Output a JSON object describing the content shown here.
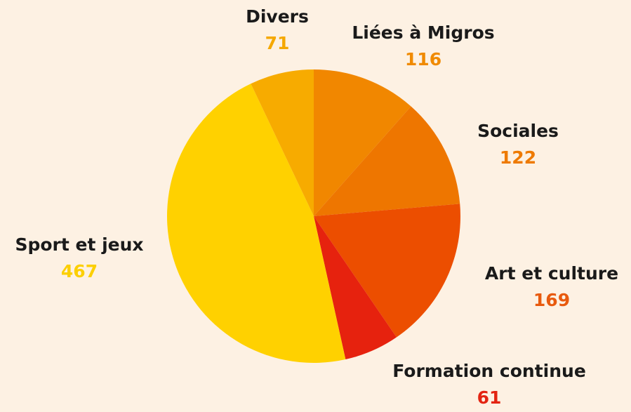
{
  "chart_data": {
    "type": "pie",
    "categories": [
      "Liées à Migros",
      "Sociales",
      "Art et culture",
      "Formation continue",
      "Sport et jeux",
      "Divers"
    ],
    "values": [
      116,
      122,
      169,
      61,
      467,
      71
    ],
    "colors": [
      "#f18700",
      "#ee7600",
      "#ec4e00",
      "#e6220e",
      "#ffd100",
      "#f7ab00"
    ]
  }
}
